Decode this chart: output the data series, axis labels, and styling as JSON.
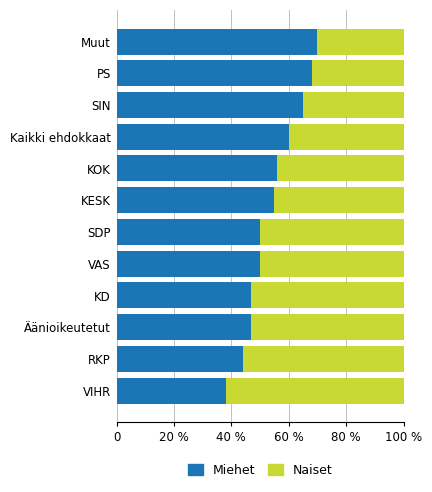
{
  "categories": [
    "Muut",
    "PS",
    "SIN",
    "Kaikki ehdokkaat",
    "KOK",
    "KESK",
    "SDP",
    "VAS",
    "KD",
    "Äänioikeutetut",
    "RKP",
    "VIHR"
  ],
  "miehet": [
    70,
    68,
    65,
    60,
    56,
    55,
    50,
    50,
    47,
    47,
    44,
    38
  ],
  "naiset": [
    30,
    32,
    35,
    40,
    44,
    45,
    50,
    50,
    53,
    53,
    56,
    62
  ],
  "color_miehet": "#1a76b5",
  "color_naiset": "#c8d933",
  "legend_labels": [
    "Miehet",
    "Naiset"
  ],
  "xticks": [
    0,
    20,
    40,
    60,
    80,
    100
  ],
  "xtick_labels": [
    "0",
    "20 %",
    "40 %",
    "60 %",
    "80 %",
    "100 %"
  ],
  "background_color": "#ffffff",
  "grid_color": "#c0c0c0",
  "bar_height": 0.82
}
